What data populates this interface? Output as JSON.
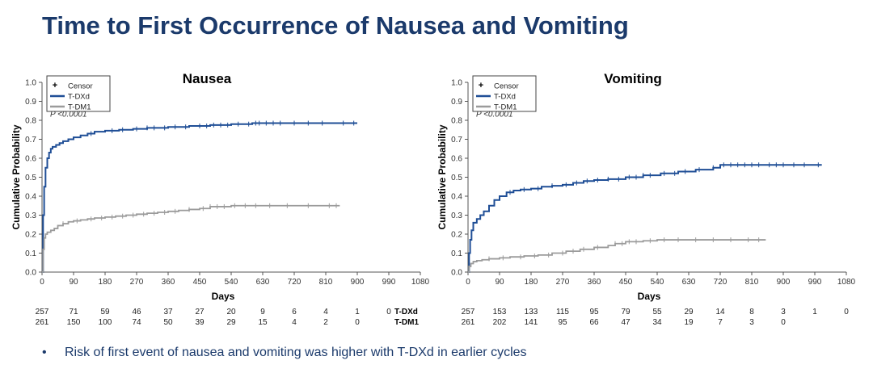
{
  "page": {
    "title": "Time to First Occurrence of Nausea and Vomiting",
    "bullet": "Risk of first event of nausea and vomiting was higher with T-DXd in earlier cycles",
    "bullet_symbol": "•"
  },
  "colors": {
    "tdxd": "#1f4e96",
    "tdm1": "#9b9b9b",
    "title": "#1b3a6b"
  },
  "chart_data": [
    {
      "type": "line",
      "title": "Nausea",
      "xlabel": "Days",
      "ylabel": "Cumulative Probability",
      "xlim": [
        0,
        1080
      ],
      "ylim": [
        0,
        1.0
      ],
      "xticks": [
        0,
        90,
        180,
        270,
        360,
        450,
        540,
        630,
        720,
        810,
        900,
        990,
        1080
      ],
      "yticks": [
        "0.0",
        "0.1",
        "0.2",
        "0.3",
        "0.4",
        "0.5",
        "0.6",
        "0.7",
        "0.8",
        "0.9",
        "1.0"
      ],
      "pvalue": "P <0.0001",
      "legend": [
        {
          "symbol": "+",
          "label": "Censor"
        },
        {
          "symbol": "line-blue",
          "label": "T-DXd"
        },
        {
          "symbol": "line-gray",
          "label": "T-DM1"
        }
      ],
      "series": [
        {
          "name": "T-DXd",
          "color": "#1f4e96",
          "x": [
            0,
            3,
            6,
            10,
            15,
            20,
            25,
            30,
            40,
            50,
            60,
            75,
            90,
            110,
            130,
            150,
            180,
            220,
            260,
            300,
            360,
            420,
            480,
            540,
            600,
            650,
            700,
            800,
            900
          ],
          "y": [
            0,
            0.3,
            0.45,
            0.55,
            0.6,
            0.63,
            0.65,
            0.66,
            0.67,
            0.68,
            0.69,
            0.7,
            0.71,
            0.72,
            0.73,
            0.74,
            0.745,
            0.75,
            0.755,
            0.76,
            0.765,
            0.77,
            0.775,
            0.78,
            0.785,
            0.785,
            0.785,
            0.785,
            0.785
          ],
          "censor_x": [
            140,
            200,
            230,
            270,
            300,
            320,
            350,
            380,
            410,
            450,
            470,
            490,
            510,
            530,
            560,
            590,
            610,
            620,
            640,
            660,
            680,
            720,
            760,
            800,
            860,
            890
          ]
        },
        {
          "name": "T-DM1",
          "color": "#9b9b9b",
          "x": [
            0,
            3,
            6,
            10,
            15,
            25,
            35,
            45,
            60,
            75,
            90,
            110,
            130,
            150,
            180,
            210,
            240,
            270,
            300,
            330,
            360,
            390,
            420,
            450,
            480,
            540,
            600,
            700,
            850
          ],
          "y": [
            0,
            0.12,
            0.18,
            0.2,
            0.21,
            0.22,
            0.23,
            0.245,
            0.255,
            0.265,
            0.27,
            0.275,
            0.28,
            0.285,
            0.29,
            0.295,
            0.3,
            0.305,
            0.31,
            0.315,
            0.32,
            0.325,
            0.33,
            0.335,
            0.345,
            0.35,
            0.35,
            0.35,
            0.35
          ],
          "censor_x": [
            60,
            100,
            140,
            170,
            200,
            230,
            260,
            290,
            320,
            350,
            380,
            420,
            460,
            480,
            500,
            520,
            550,
            580,
            610,
            650,
            700,
            760,
            820,
            840
          ]
        }
      ],
      "risk_table": {
        "labels": [
          "T-DXd",
          "T-DM1"
        ],
        "first_counts": [
          "257",
          "261"
        ],
        "rows": [
          [
            "71",
            "59",
            "46",
            "37",
            "27",
            "20",
            "9",
            "6",
            "4",
            "1",
            "0"
          ],
          [
            "150",
            "100",
            "74",
            "50",
            "39",
            "29",
            "15",
            "4",
            "2",
            "0"
          ]
        ]
      }
    },
    {
      "type": "line",
      "title": "Vomiting",
      "xlabel": "Days",
      "ylabel": "Cumulative Probability",
      "xlim": [
        0,
        1080
      ],
      "ylim": [
        0,
        1.0
      ],
      "xticks": [
        0,
        90,
        180,
        270,
        360,
        450,
        540,
        630,
        720,
        810,
        900,
        990,
        1080
      ],
      "yticks": [
        "0.0",
        "0.1",
        "0.2",
        "0.3",
        "0.4",
        "0.5",
        "0.6",
        "0.7",
        "0.8",
        "0.9",
        "1.0"
      ],
      "pvalue": "P <0.0001",
      "legend": [
        {
          "symbol": "+",
          "label": "Censor"
        },
        {
          "symbol": "line-blue",
          "label": "T-DXd"
        },
        {
          "symbol": "line-gray",
          "label": "T-DM1"
        }
      ],
      "series": [
        {
          "name": "T-DXd",
          "color": "#1f4e96",
          "x": [
            0,
            3,
            6,
            10,
            15,
            25,
            35,
            45,
            60,
            75,
            90,
            110,
            130,
            150,
            180,
            210,
            240,
            270,
            300,
            330,
            360,
            400,
            450,
            500,
            550,
            600,
            650,
            700,
            720,
            800,
            900,
            1010
          ],
          "y": [
            0,
            0.1,
            0.17,
            0.22,
            0.26,
            0.28,
            0.3,
            0.32,
            0.35,
            0.38,
            0.4,
            0.42,
            0.43,
            0.435,
            0.44,
            0.45,
            0.455,
            0.46,
            0.47,
            0.48,
            0.485,
            0.49,
            0.5,
            0.51,
            0.52,
            0.53,
            0.54,
            0.55,
            0.565,
            0.565,
            0.565,
            0.565
          ],
          "censor_x": [
            120,
            160,
            200,
            240,
            280,
            310,
            340,
            370,
            400,
            430,
            460,
            480,
            500,
            520,
            560,
            590,
            620,
            660,
            700,
            730,
            750,
            770,
            790,
            810,
            830,
            860,
            880,
            900,
            930,
            960,
            1000
          ]
        },
        {
          "name": "T-DM1",
          "color": "#9b9b9b",
          "x": [
            0,
            3,
            8,
            15,
            25,
            40,
            60,
            90,
            120,
            160,
            200,
            240,
            280,
            320,
            360,
            400,
            420,
            450,
            500,
            540,
            600,
            700,
            850
          ],
          "y": [
            0,
            0.03,
            0.045,
            0.055,
            0.06,
            0.065,
            0.07,
            0.075,
            0.08,
            0.085,
            0.09,
            0.1,
            0.11,
            0.12,
            0.13,
            0.14,
            0.15,
            0.16,
            0.165,
            0.17,
            0.17,
            0.17,
            0.17
          ],
          "censor_x": [
            60,
            100,
            150,
            190,
            230,
            270,
            300,
            330,
            370,
            420,
            440,
            460,
            480,
            520,
            560,
            600,
            650,
            700,
            750,
            800,
            830
          ]
        }
      ],
      "risk_table": {
        "labels": [
          "T-DXd",
          "T-DM1"
        ],
        "first_counts": [
          "257",
          "261"
        ],
        "rows": [
          [
            "153",
            "133",
            "115",
            "95",
            "79",
            "55",
            "29",
            "14",
            "8",
            "3",
            "1",
            "0"
          ],
          [
            "202",
            "141",
            "95",
            "66",
            "47",
            "34",
            "19",
            "7",
            "3",
            "0"
          ]
        ]
      }
    }
  ]
}
